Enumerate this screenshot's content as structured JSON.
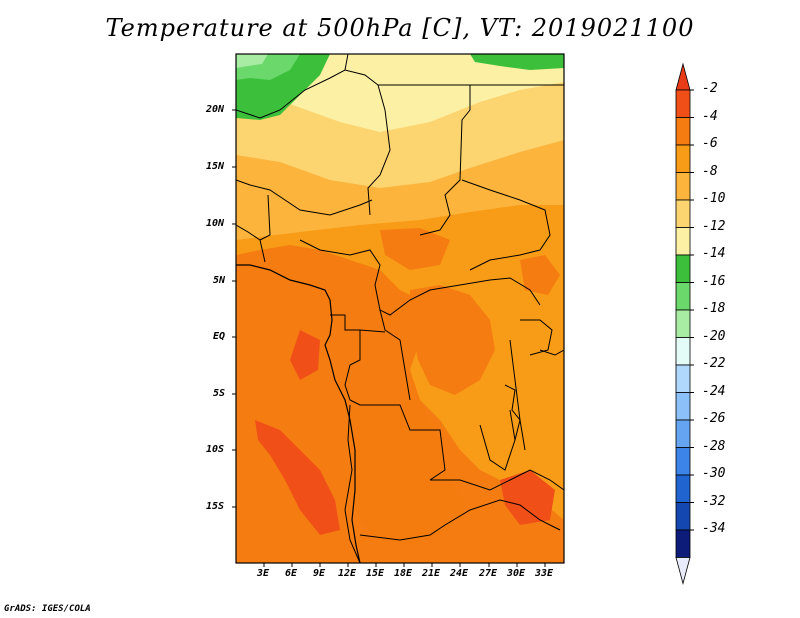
{
  "title": "Temperature at 500hPa [C], VT: 2019021100",
  "credit": "GrADS: IGES/COLA",
  "map": {
    "lon_labels": [
      "3E",
      "6E",
      "9E",
      "12E",
      "15E",
      "18E",
      "21E",
      "24E",
      "27E",
      "30E",
      "33E"
    ],
    "lat_labels": [
      "20N",
      "15N",
      "10N",
      "5N",
      "EQ",
      "5S",
      "10S",
      "15S"
    ]
  },
  "colorbar": {
    "levels": [
      "-2",
      "-4",
      "-6",
      "-8",
      "-10",
      "-12",
      "-14",
      "-16",
      "-18",
      "-20",
      "-22",
      "-24",
      "-26",
      "-28",
      "-30",
      "-32",
      "-34"
    ],
    "colors": [
      "#f05018",
      "#f47c10",
      "#f89c18",
      "#fcb43c",
      "#fcd470",
      "#fcf0a4",
      "#3cc03c",
      "#6ad86a",
      "#a8eca4",
      "#e4fcf8",
      "#b0d8fc",
      "#8cc0f8",
      "#64a4f0",
      "#3c84e8",
      "#2064d0",
      "#1448b0",
      "#0c1c78"
    ],
    "top_arrow_color": "#e83c18",
    "bottom_arrow_color": "#e8ecfc"
  }
}
